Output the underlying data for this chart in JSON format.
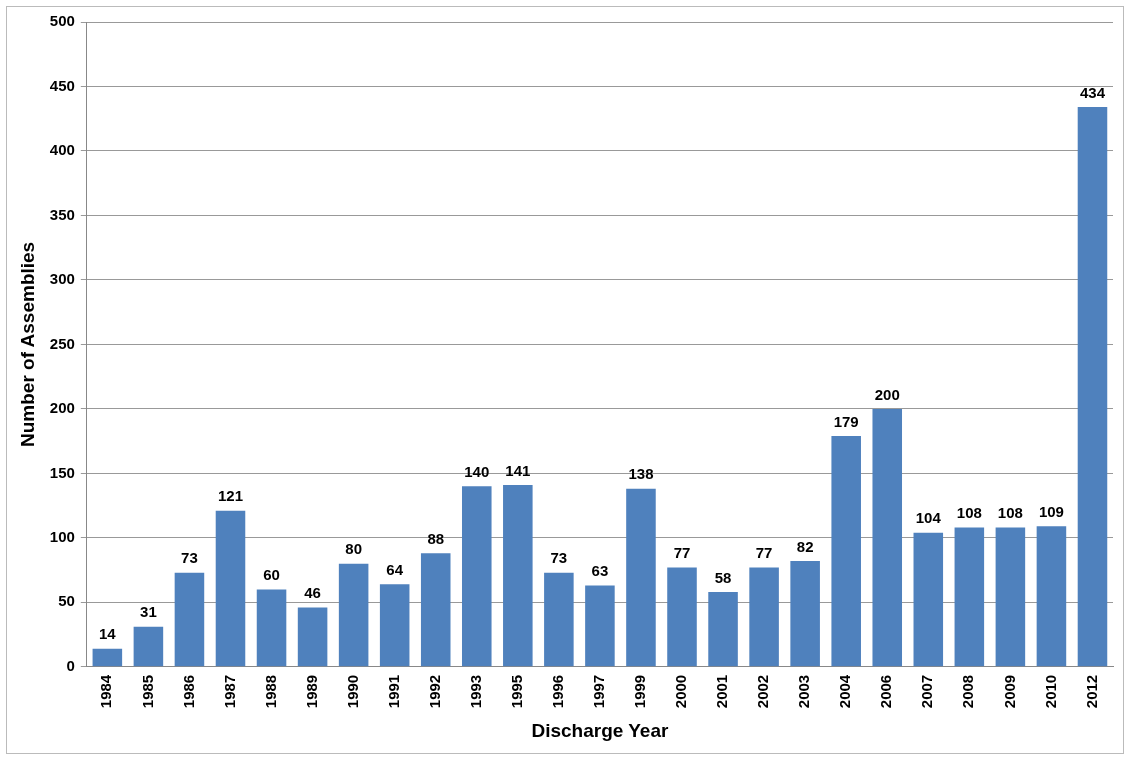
{
  "chart_data": {
    "type": "bar",
    "xlabel": "Discharge Year",
    "ylabel": "Number of Assemblies",
    "categories": [
      "1984",
      "1985",
      "1986",
      "1987",
      "1988",
      "1989",
      "1990",
      "1991",
      "1992",
      "1993",
      "1995",
      "1996",
      "1997",
      "1999",
      "2000",
      "2001",
      "2002",
      "2003",
      "2004",
      "2006",
      "2007",
      "2008",
      "2009",
      "2010",
      "2012"
    ],
    "values": [
      14,
      31,
      73,
      121,
      60,
      46,
      80,
      64,
      88,
      140,
      141,
      73,
      63,
      138,
      77,
      58,
      77,
      82,
      179,
      200,
      104,
      108,
      108,
      109,
      434
    ],
    "color": "#4f81bd",
    "ylim": [
      0,
      500
    ],
    "yticks": [
      0,
      50,
      100,
      150,
      200,
      250,
      300,
      350,
      400,
      450,
      500
    ],
    "grid": "y",
    "data_labels": true,
    "legend": false
  }
}
